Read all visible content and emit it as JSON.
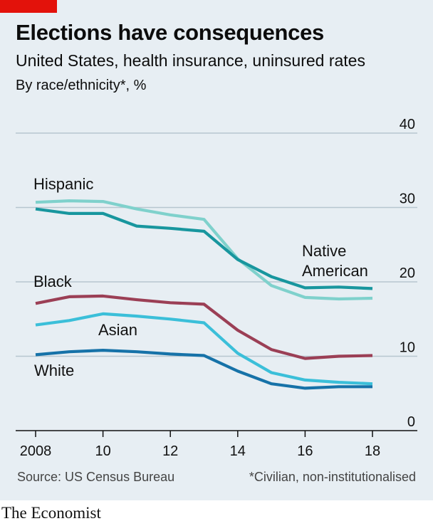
{
  "header": {
    "title": "Elections have consequences",
    "subtitle": "United States, health insurance, uninsured rates",
    "note": "By race/ethnicity*, %"
  },
  "footer": {
    "source": "Source: US Census Bureau",
    "footnote": "*Civilian, non-institutionalised",
    "brand": "The Economist"
  },
  "colors": {
    "brand_red": "#e3120b",
    "background": "#e7eef3"
  },
  "chart_data": {
    "type": "line",
    "x": [
      2008,
      2009,
      2010,
      2011,
      2012,
      2013,
      2014,
      2015,
      2016,
      2017,
      2018
    ],
    "xticks": [
      2008,
      2010,
      2012,
      2014,
      2016,
      2018
    ],
    "xtick_labels": [
      "2008",
      "10",
      "12",
      "14",
      "16",
      "18"
    ],
    "yticks": [
      0,
      10,
      20,
      30,
      40
    ],
    "ylim": [
      0,
      40
    ],
    "xlim": [
      2008,
      2018
    ],
    "grid": true,
    "series": [
      {
        "name": "Hispanic",
        "color": "#7fd1cc",
        "values": [
          30.7,
          30.9,
          30.8,
          29.8,
          29.0,
          28.4,
          23.1,
          19.5,
          17.9,
          17.7,
          17.8
        ]
      },
      {
        "name": "Native American",
        "color": "#18969e",
        "values": [
          29.8,
          29.2,
          29.2,
          27.5,
          27.2,
          26.8,
          23.0,
          20.7,
          19.2,
          19.3,
          19.1
        ]
      },
      {
        "name": "Black",
        "color": "#9b3f55",
        "values": [
          17.1,
          18.0,
          18.1,
          17.6,
          17.2,
          17.0,
          13.5,
          10.9,
          9.7,
          10.0,
          10.1
        ]
      },
      {
        "name": "Asian",
        "color": "#3bbfd9",
        "values": [
          14.2,
          14.8,
          15.7,
          15.4,
          15.0,
          14.5,
          10.4,
          7.8,
          6.8,
          6.5,
          6.3
        ]
      },
      {
        "name": "White",
        "color": "#1672a8",
        "values": [
          10.2,
          10.6,
          10.8,
          10.6,
          10.3,
          10.1,
          8.0,
          6.3,
          5.7,
          5.9,
          5.9
        ]
      }
    ]
  }
}
